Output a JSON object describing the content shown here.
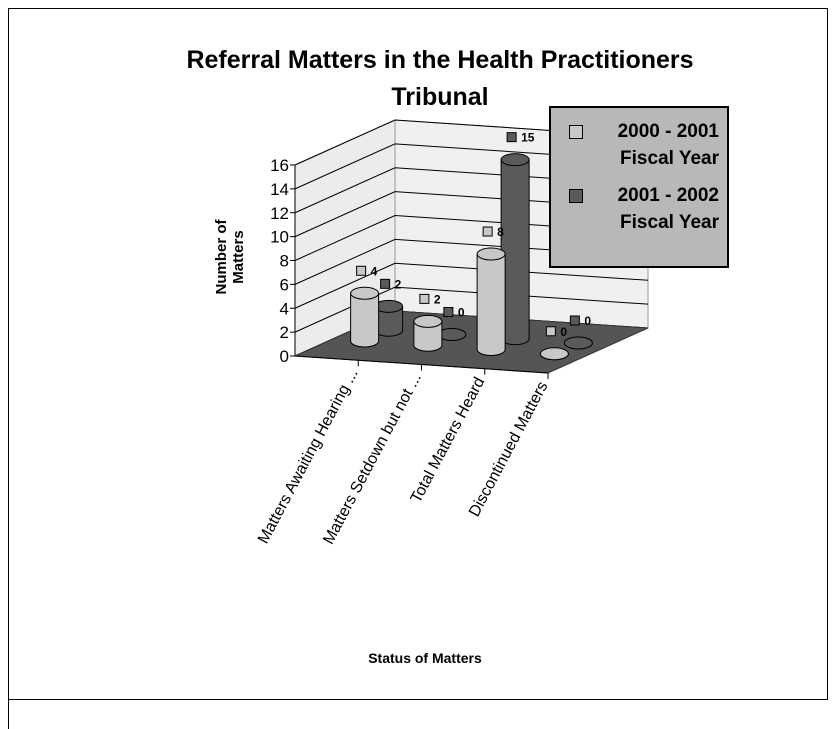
{
  "chart_data": {
    "type": "bar3d",
    "title": "Referral Matters in the Health Practitioners Tribunal",
    "y_label": "Number of Matters",
    "x_label": "Status of Matters",
    "categories": [
      "Matters Awaiting Hearing ...",
      "Matters Setdown but not ...",
      "Total Matters Heard",
      "Discontinued Matters"
    ],
    "series": [
      {
        "name": "2000 - 2001 Fiscal Year",
        "color": "#c8c8c8",
        "values": [
          4,
          2,
          8,
          0
        ]
      },
      {
        "name": "2001 - 2002 Fiscal Year",
        "color": "#5a5a5a",
        "values": [
          2,
          0,
          15,
          0
        ]
      }
    ],
    "ylim": [
      0,
      16
    ],
    "yticks": [
      0,
      2,
      4,
      6,
      8,
      10,
      12,
      14,
      16
    ],
    "grid": true,
    "legend": "right"
  }
}
